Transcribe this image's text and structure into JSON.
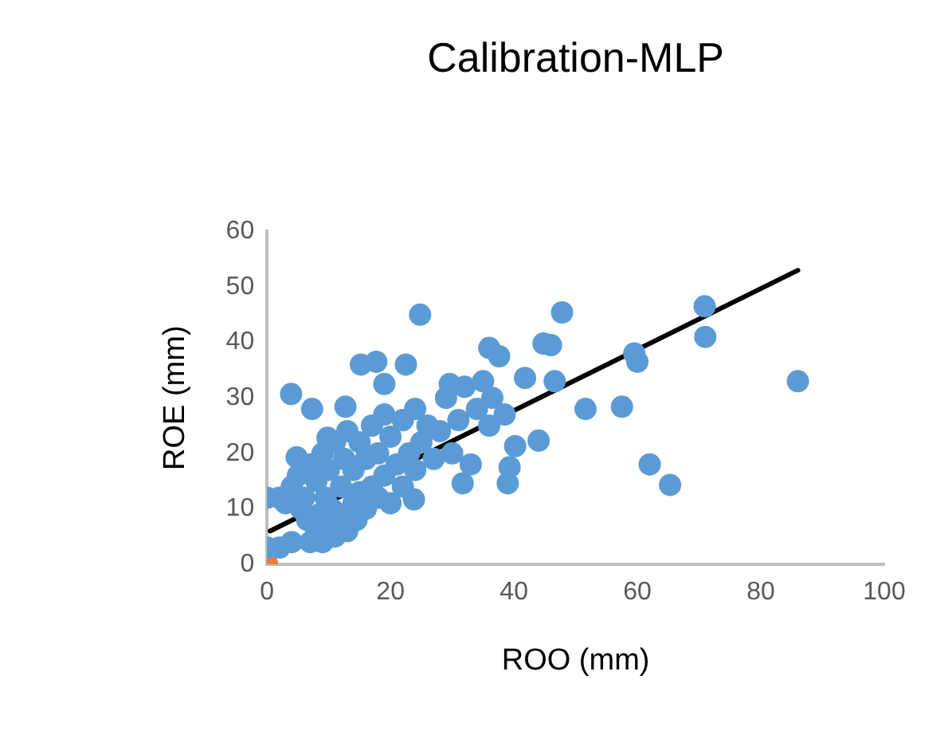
{
  "chart_data": {
    "type": "scatter",
    "title": "Calibration-MLP",
    "xlabel": "ROO (mm)",
    "ylabel": "ROE (mm)",
    "xlim": [
      0,
      100
    ],
    "xticks": [
      0,
      20,
      40,
      60,
      80,
      100
    ],
    "ylim": [
      0,
      60
    ],
    "yticks": [
      0,
      10,
      20,
      30,
      40,
      50,
      60
    ],
    "grid": false,
    "legend": false,
    "marker": "circle",
    "series": [
      {
        "type": "scatter",
        "color": "#5b9bd5",
        "x": [
          0,
          0,
          2,
          2,
          3,
          4,
          4,
          5,
          5.5,
          6,
          6.5,
          7,
          7,
          8,
          8,
          8.5,
          9,
          9,
          9.5,
          10,
          10,
          10.5,
          11,
          11,
          12,
          12,
          12.5,
          13,
          13,
          14,
          14,
          14.5,
          15,
          15,
          16,
          16,
          17,
          17,
          18,
          18,
          19,
          19,
          20,
          20,
          21,
          22,
          22,
          23,
          24,
          24,
          25,
          26,
          27,
          28,
          29,
          30,
          31,
          32,
          33,
          34,
          35,
          36,
          3.9,
          7.3,
          15.2,
          17.7,
          22.5,
          19,
          12.7,
          24.8,
          4.8,
          9.8,
          23.8,
          29.6,
          31.7,
          36,
          37.6,
          36.5,
          38.5,
          40.2,
          41.8,
          39,
          39.3,
          44,
          46.6,
          44.8,
          46,
          47.8,
          51.6,
          57.5,
          59.5,
          60,
          62,
          65.3,
          70.9,
          71,
          86
        ],
        "values": [
          3,
          12,
          3,
          12,
          11,
          4,
          14,
          16,
          10,
          12,
          8,
          4,
          18,
          6,
          15,
          9,
          4,
          20,
          12,
          7,
          17,
          10,
          5,
          22,
          9,
          14,
          19,
          6,
          24,
          11,
          17,
          8,
          13,
          22,
          10,
          19,
          14,
          25,
          12,
          20,
          16,
          27,
          11,
          23,
          18,
          14,
          26,
          20,
          17,
          28,
          22,
          25,
          19,
          24,
          30,
          20,
          26,
          32,
          18,
          28,
          33,
          25,
          30.7,
          28,
          36,
          36.5,
          36,
          32.5,
          28.4,
          45,
          19.3,
          22.8,
          11.7,
          32.5,
          14.6,
          39,
          37.5,
          30,
          27,
          21.3,
          33.6,
          14.6,
          17.5,
          22.3,
          33,
          39.8,
          39.5,
          45.4,
          28,
          28.4,
          38,
          36.5,
          18,
          14.3,
          46.5,
          41,
          33
        ]
      },
      {
        "type": "scatter",
        "color": "#ed7d31",
        "x": [
          0
        ],
        "values": [
          0
        ]
      },
      {
        "type": "line",
        "marker": "none",
        "color": "#000000",
        "x": [
          0.5,
          86
        ],
        "values": [
          6,
          53
        ]
      }
    ]
  }
}
